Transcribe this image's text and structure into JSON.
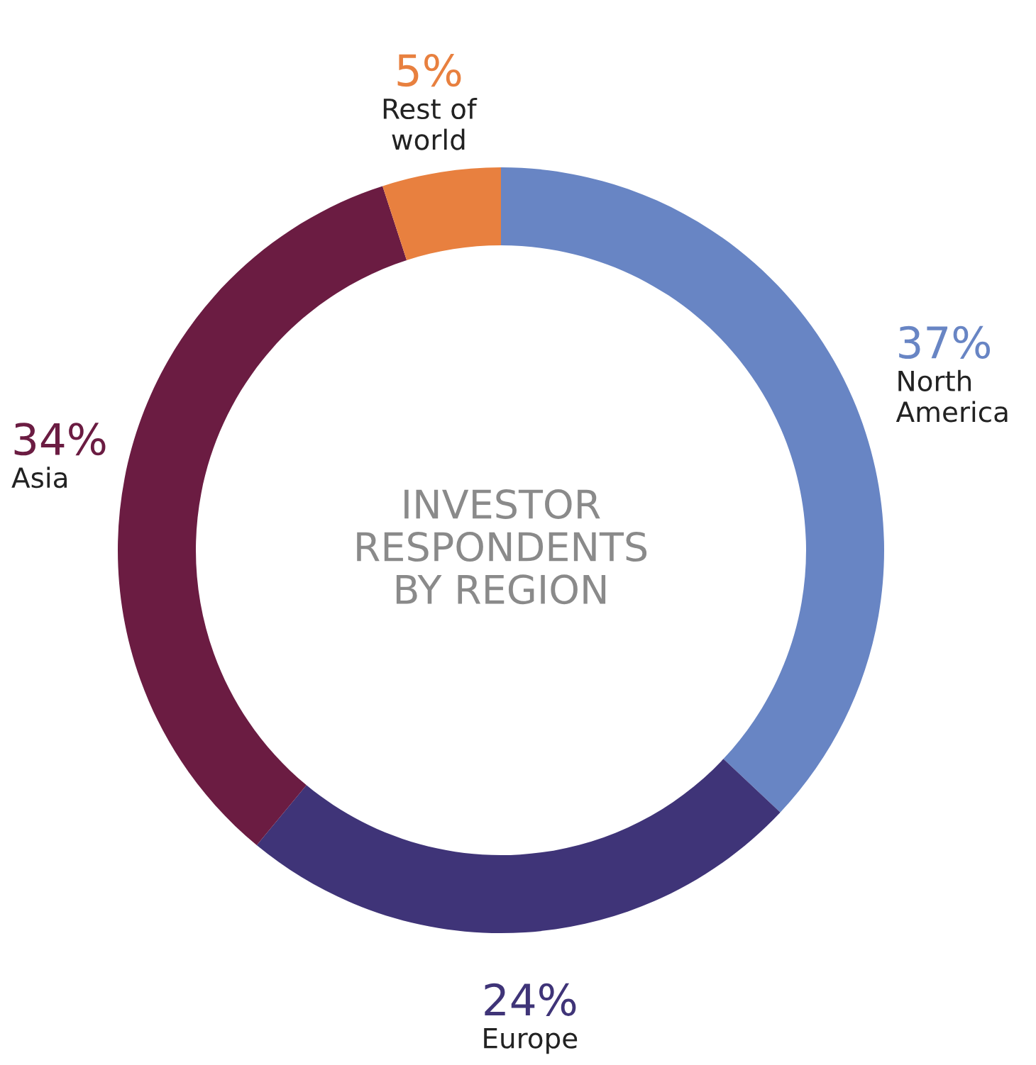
{
  "chart_data": {
    "type": "donut",
    "title": "INVESTOR\nRESPONDENTS\nBY REGION",
    "categories": [
      "North\nAmerica",
      "Europe",
      "Asia",
      "Rest of\nworld"
    ],
    "values": [
      37,
      24,
      34,
      5
    ],
    "colors": [
      "#6885c4",
      "#3f3478",
      "#6b1c42",
      "#e8803f"
    ],
    "value_labels": [
      "37%",
      "24%",
      "34%",
      "5%"
    ],
    "legend": false
  }
}
